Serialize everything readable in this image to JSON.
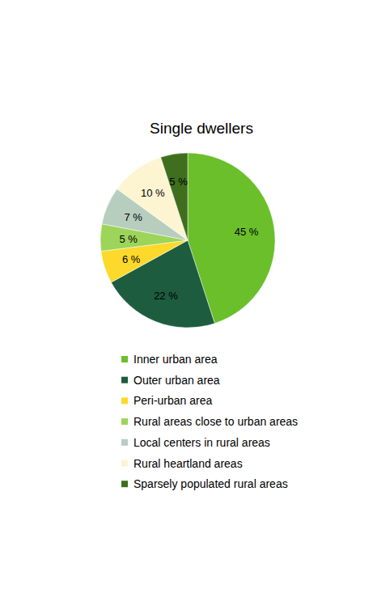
{
  "chart_data": {
    "type": "pie",
    "title": "Single dwellers",
    "categories": [
      "Inner urban area",
      "Outer urban area",
      "Peri-urban area",
      "Rural areas close to urban areas",
      "Local centers in rural areas",
      "Rural heartland areas",
      "Sparsely populated rural areas"
    ],
    "values": [
      45,
      22,
      6,
      5,
      7,
      10,
      5
    ],
    "value_labels": [
      "45 %",
      "22 %",
      "6 %",
      "5 %",
      "7 %",
      "10 %",
      "5 %"
    ],
    "colors": [
      "#6abf2a",
      "#1e5c40",
      "#fcd92a",
      "#9dd45a",
      "#b7cebf",
      "#fdf4d2",
      "#3f6f1e"
    ],
    "data_labels": true,
    "legend": "bottom"
  }
}
